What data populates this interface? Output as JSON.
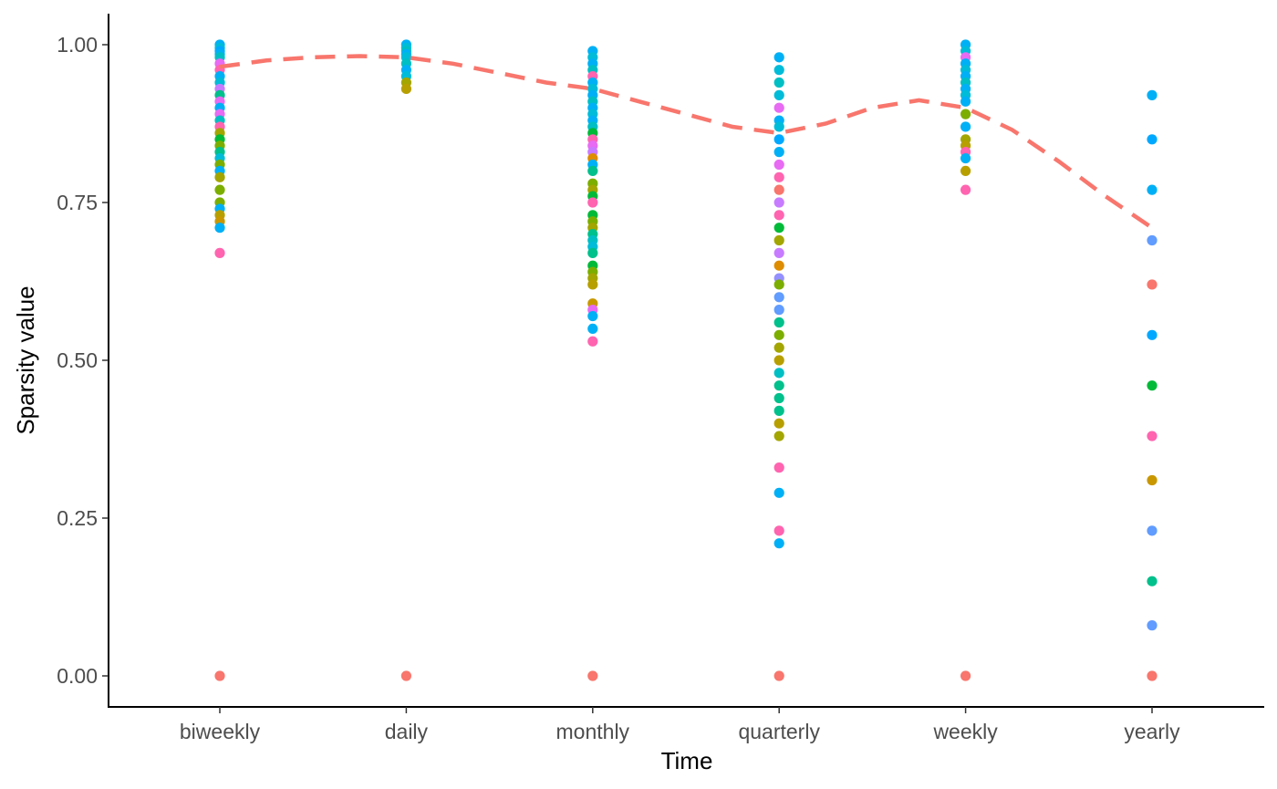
{
  "chart_data": {
    "type": "scatter",
    "title": "",
    "xlabel": "Time",
    "ylabel": "Sparsity value",
    "categories": [
      "biweekly",
      "daily",
      "monthly",
      "quarterly",
      "weekly",
      "yearly"
    ],
    "yticks": [
      "0.00",
      "0.25",
      "0.50",
      "0.75",
      "1.00"
    ],
    "ytick_values": [
      0,
      0.25,
      0.5,
      0.75,
      1.0
    ],
    "ylim": [
      -0.05,
      1.05
    ],
    "grid": false,
    "legend": "none",
    "palette": [
      "#F8766D",
      "#FF64B0",
      "#E76BF3",
      "#C77CFF",
      "#9590FF",
      "#619CFF",
      "#00A9FF",
      "#00B0F6",
      "#00BCD8",
      "#00BFC4",
      "#00C08B",
      "#00BA38",
      "#7CAE00",
      "#A3A500",
      "#B79F00",
      "#C99800",
      "#DE8C00"
    ],
    "points": [
      {
        "category": "biweekly",
        "values": [
          {
            "y": 1.0,
            "color": "#00B0F6"
          },
          {
            "y": 0.995,
            "color": "#00BCD8"
          },
          {
            "y": 0.99,
            "color": "#00A9FF"
          },
          {
            "y": 0.985,
            "color": "#00B0F6"
          },
          {
            "y": 0.98,
            "color": "#00BFC4"
          },
          {
            "y": 0.97,
            "color": "#E76BF3"
          },
          {
            "y": 0.96,
            "color": "#FF64B0"
          },
          {
            "y": 0.95,
            "color": "#00B0F6"
          },
          {
            "y": 0.94,
            "color": "#00BCD8"
          },
          {
            "y": 0.93,
            "color": "#C77CFF"
          },
          {
            "y": 0.92,
            "color": "#00C08B"
          },
          {
            "y": 0.91,
            "color": "#E76BF3"
          },
          {
            "y": 0.9,
            "color": "#00B0F6"
          },
          {
            "y": 0.89,
            "color": "#E76BF3"
          },
          {
            "y": 0.88,
            "color": "#00BFC4"
          },
          {
            "y": 0.87,
            "color": "#FF64B0"
          },
          {
            "y": 0.86,
            "color": "#A3A500"
          },
          {
            "y": 0.85,
            "color": "#00BA38"
          },
          {
            "y": 0.84,
            "color": "#7CAE00"
          },
          {
            "y": 0.83,
            "color": "#00C08B"
          },
          {
            "y": 0.82,
            "color": "#00BCD8"
          },
          {
            "y": 0.81,
            "color": "#7CAE00"
          },
          {
            "y": 0.8,
            "color": "#00B0F6"
          },
          {
            "y": 0.79,
            "color": "#A3A500"
          },
          {
            "y": 0.77,
            "color": "#7CAE00"
          },
          {
            "y": 0.75,
            "color": "#7CAE00"
          },
          {
            "y": 0.74,
            "color": "#00B0F6"
          },
          {
            "y": 0.73,
            "color": "#B79F00"
          },
          {
            "y": 0.72,
            "color": "#C99800"
          },
          {
            "y": 0.71,
            "color": "#00B0F6"
          },
          {
            "y": 0.67,
            "color": "#FF64B0"
          },
          {
            "y": 0.0,
            "color": "#F8766D"
          }
        ]
      },
      {
        "category": "daily",
        "values": [
          {
            "y": 1.0,
            "color": "#00B0F6"
          },
          {
            "y": 0.995,
            "color": "#00BCD8"
          },
          {
            "y": 0.99,
            "color": "#00BFC4"
          },
          {
            "y": 0.985,
            "color": "#00B0F6"
          },
          {
            "y": 0.98,
            "color": "#00BCD8"
          },
          {
            "y": 0.97,
            "color": "#00BFC4"
          },
          {
            "y": 0.96,
            "color": "#00B0F6"
          },
          {
            "y": 0.95,
            "color": "#00BCD8"
          },
          {
            "y": 0.94,
            "color": "#A3A500"
          },
          {
            "y": 0.93,
            "color": "#B79F00"
          },
          {
            "y": 0.0,
            "color": "#F8766D"
          }
        ]
      },
      {
        "category": "monthly",
        "values": [
          {
            "y": 0.99,
            "color": "#00B0F6"
          },
          {
            "y": 0.98,
            "color": "#00BCD8"
          },
          {
            "y": 0.97,
            "color": "#00B0F6"
          },
          {
            "y": 0.96,
            "color": "#00BFC4"
          },
          {
            "y": 0.95,
            "color": "#FF64B0"
          },
          {
            "y": 0.94,
            "color": "#00B0F6"
          },
          {
            "y": 0.93,
            "color": "#00BCD8"
          },
          {
            "y": 0.92,
            "color": "#00B0F6"
          },
          {
            "y": 0.91,
            "color": "#00BFC4"
          },
          {
            "y": 0.9,
            "color": "#00B0F6"
          },
          {
            "y": 0.89,
            "color": "#00BCD8"
          },
          {
            "y": 0.88,
            "color": "#00B0F6"
          },
          {
            "y": 0.87,
            "color": "#00BFC4"
          },
          {
            "y": 0.86,
            "color": "#00BA38"
          },
          {
            "y": 0.85,
            "color": "#FF64B0"
          },
          {
            "y": 0.84,
            "color": "#E76BF3"
          },
          {
            "y": 0.83,
            "color": "#C77CFF"
          },
          {
            "y": 0.82,
            "color": "#DE8C00"
          },
          {
            "y": 0.81,
            "color": "#00B0F6"
          },
          {
            "y": 0.8,
            "color": "#00C08B"
          },
          {
            "y": 0.78,
            "color": "#7CAE00"
          },
          {
            "y": 0.77,
            "color": "#A3A500"
          },
          {
            "y": 0.76,
            "color": "#00BA38"
          },
          {
            "y": 0.75,
            "color": "#FF64B0"
          },
          {
            "y": 0.73,
            "color": "#00BA38"
          },
          {
            "y": 0.72,
            "color": "#7CAE00"
          },
          {
            "y": 0.71,
            "color": "#A3A500"
          },
          {
            "y": 0.7,
            "color": "#00C08B"
          },
          {
            "y": 0.69,
            "color": "#00BFC4"
          },
          {
            "y": 0.68,
            "color": "#00BCD8"
          },
          {
            "y": 0.67,
            "color": "#00C08B"
          },
          {
            "y": 0.65,
            "color": "#00BA38"
          },
          {
            "y": 0.64,
            "color": "#7CAE00"
          },
          {
            "y": 0.63,
            "color": "#A3A500"
          },
          {
            "y": 0.62,
            "color": "#B79F00"
          },
          {
            "y": 0.59,
            "color": "#C99800"
          },
          {
            "y": 0.58,
            "color": "#E76BF3"
          },
          {
            "y": 0.57,
            "color": "#00B0F6"
          },
          {
            "y": 0.55,
            "color": "#00B0F6"
          },
          {
            "y": 0.53,
            "color": "#FF64B0"
          },
          {
            "y": 0.0,
            "color": "#F8766D"
          }
        ]
      },
      {
        "category": "quarterly",
        "values": [
          {
            "y": 0.98,
            "color": "#00B0F6"
          },
          {
            "y": 0.96,
            "color": "#00BCD8"
          },
          {
            "y": 0.94,
            "color": "#00BFC4"
          },
          {
            "y": 0.92,
            "color": "#00BCD8"
          },
          {
            "y": 0.9,
            "color": "#E76BF3"
          },
          {
            "y": 0.88,
            "color": "#00B0F6"
          },
          {
            "y": 0.87,
            "color": "#00BCD8"
          },
          {
            "y": 0.85,
            "color": "#00A9FF"
          },
          {
            "y": 0.83,
            "color": "#00B0F6"
          },
          {
            "y": 0.81,
            "color": "#E76BF3"
          },
          {
            "y": 0.79,
            "color": "#FF64B0"
          },
          {
            "y": 0.77,
            "color": "#F8766D"
          },
          {
            "y": 0.75,
            "color": "#C77CFF"
          },
          {
            "y": 0.73,
            "color": "#FF64B0"
          },
          {
            "y": 0.71,
            "color": "#00BA38"
          },
          {
            "y": 0.69,
            "color": "#A3A500"
          },
          {
            "y": 0.67,
            "color": "#C77CFF"
          },
          {
            "y": 0.65,
            "color": "#DE8C00"
          },
          {
            "y": 0.63,
            "color": "#9590FF"
          },
          {
            "y": 0.62,
            "color": "#7CAE00"
          },
          {
            "y": 0.6,
            "color": "#619CFF"
          },
          {
            "y": 0.58,
            "color": "#619CFF"
          },
          {
            "y": 0.56,
            "color": "#00C08B"
          },
          {
            "y": 0.54,
            "color": "#7CAE00"
          },
          {
            "y": 0.52,
            "color": "#A3A500"
          },
          {
            "y": 0.5,
            "color": "#B79F00"
          },
          {
            "y": 0.48,
            "color": "#00BFC4"
          },
          {
            "y": 0.46,
            "color": "#00C08B"
          },
          {
            "y": 0.44,
            "color": "#00C08B"
          },
          {
            "y": 0.42,
            "color": "#00C08B"
          },
          {
            "y": 0.4,
            "color": "#B79F00"
          },
          {
            "y": 0.38,
            "color": "#A3A500"
          },
          {
            "y": 0.33,
            "color": "#FF64B0"
          },
          {
            "y": 0.29,
            "color": "#00B0F6"
          },
          {
            "y": 0.23,
            "color": "#FF64B0"
          },
          {
            "y": 0.21,
            "color": "#00B0F6"
          },
          {
            "y": 0.0,
            "color": "#F8766D"
          }
        ]
      },
      {
        "category": "weekly",
        "values": [
          {
            "y": 1.0,
            "color": "#00B0F6"
          },
          {
            "y": 0.99,
            "color": "#00BCD8"
          },
          {
            "y": 0.98,
            "color": "#E76BF3"
          },
          {
            "y": 0.97,
            "color": "#00B0F6"
          },
          {
            "y": 0.96,
            "color": "#00BCD8"
          },
          {
            "y": 0.95,
            "color": "#00B0F6"
          },
          {
            "y": 0.94,
            "color": "#00BFC4"
          },
          {
            "y": 0.93,
            "color": "#00B0F6"
          },
          {
            "y": 0.92,
            "color": "#00BCD8"
          },
          {
            "y": 0.91,
            "color": "#00B0F6"
          },
          {
            "y": 0.89,
            "color": "#7CAE00"
          },
          {
            "y": 0.87,
            "color": "#00B0F6"
          },
          {
            "y": 0.85,
            "color": "#A3A500"
          },
          {
            "y": 0.84,
            "color": "#B79F00"
          },
          {
            "y": 0.83,
            "color": "#FF64B0"
          },
          {
            "y": 0.82,
            "color": "#00B0F6"
          },
          {
            "y": 0.8,
            "color": "#B79F00"
          },
          {
            "y": 0.77,
            "color": "#FF64B0"
          },
          {
            "y": 0.0,
            "color": "#F8766D"
          }
        ]
      },
      {
        "category": "yearly",
        "values": [
          {
            "y": 0.92,
            "color": "#00B0F6"
          },
          {
            "y": 0.85,
            "color": "#00A9FF"
          },
          {
            "y": 0.77,
            "color": "#00B0F6"
          },
          {
            "y": 0.69,
            "color": "#619CFF"
          },
          {
            "y": 0.62,
            "color": "#F8766D"
          },
          {
            "y": 0.54,
            "color": "#00A9FF"
          },
          {
            "y": 0.46,
            "color": "#00BA38"
          },
          {
            "y": 0.38,
            "color": "#FF64B0"
          },
          {
            "y": 0.31,
            "color": "#C99800"
          },
          {
            "y": 0.23,
            "color": "#619CFF"
          },
          {
            "y": 0.15,
            "color": "#00C08B"
          },
          {
            "y": 0.08,
            "color": "#619CFF"
          },
          {
            "y": 0.0,
            "color": "#F8766D"
          }
        ]
      }
    ],
    "trend_line": {
      "style": "dashed",
      "color": "#F8766D",
      "x": [
        0.0,
        0.25,
        0.5,
        0.75,
        1.0,
        1.25,
        1.5,
        1.75,
        2.0,
        2.25,
        2.5,
        2.75,
        3.0,
        3.25,
        3.5,
        3.75,
        4.0,
        4.25,
        4.5,
        4.75,
        5.0
      ],
      "y": [
        0.965,
        0.975,
        0.98,
        0.982,
        0.98,
        0.97,
        0.955,
        0.94,
        0.93,
        0.91,
        0.89,
        0.87,
        0.86,
        0.875,
        0.9,
        0.912,
        0.9,
        0.865,
        0.815,
        0.76,
        0.71
      ]
    }
  }
}
